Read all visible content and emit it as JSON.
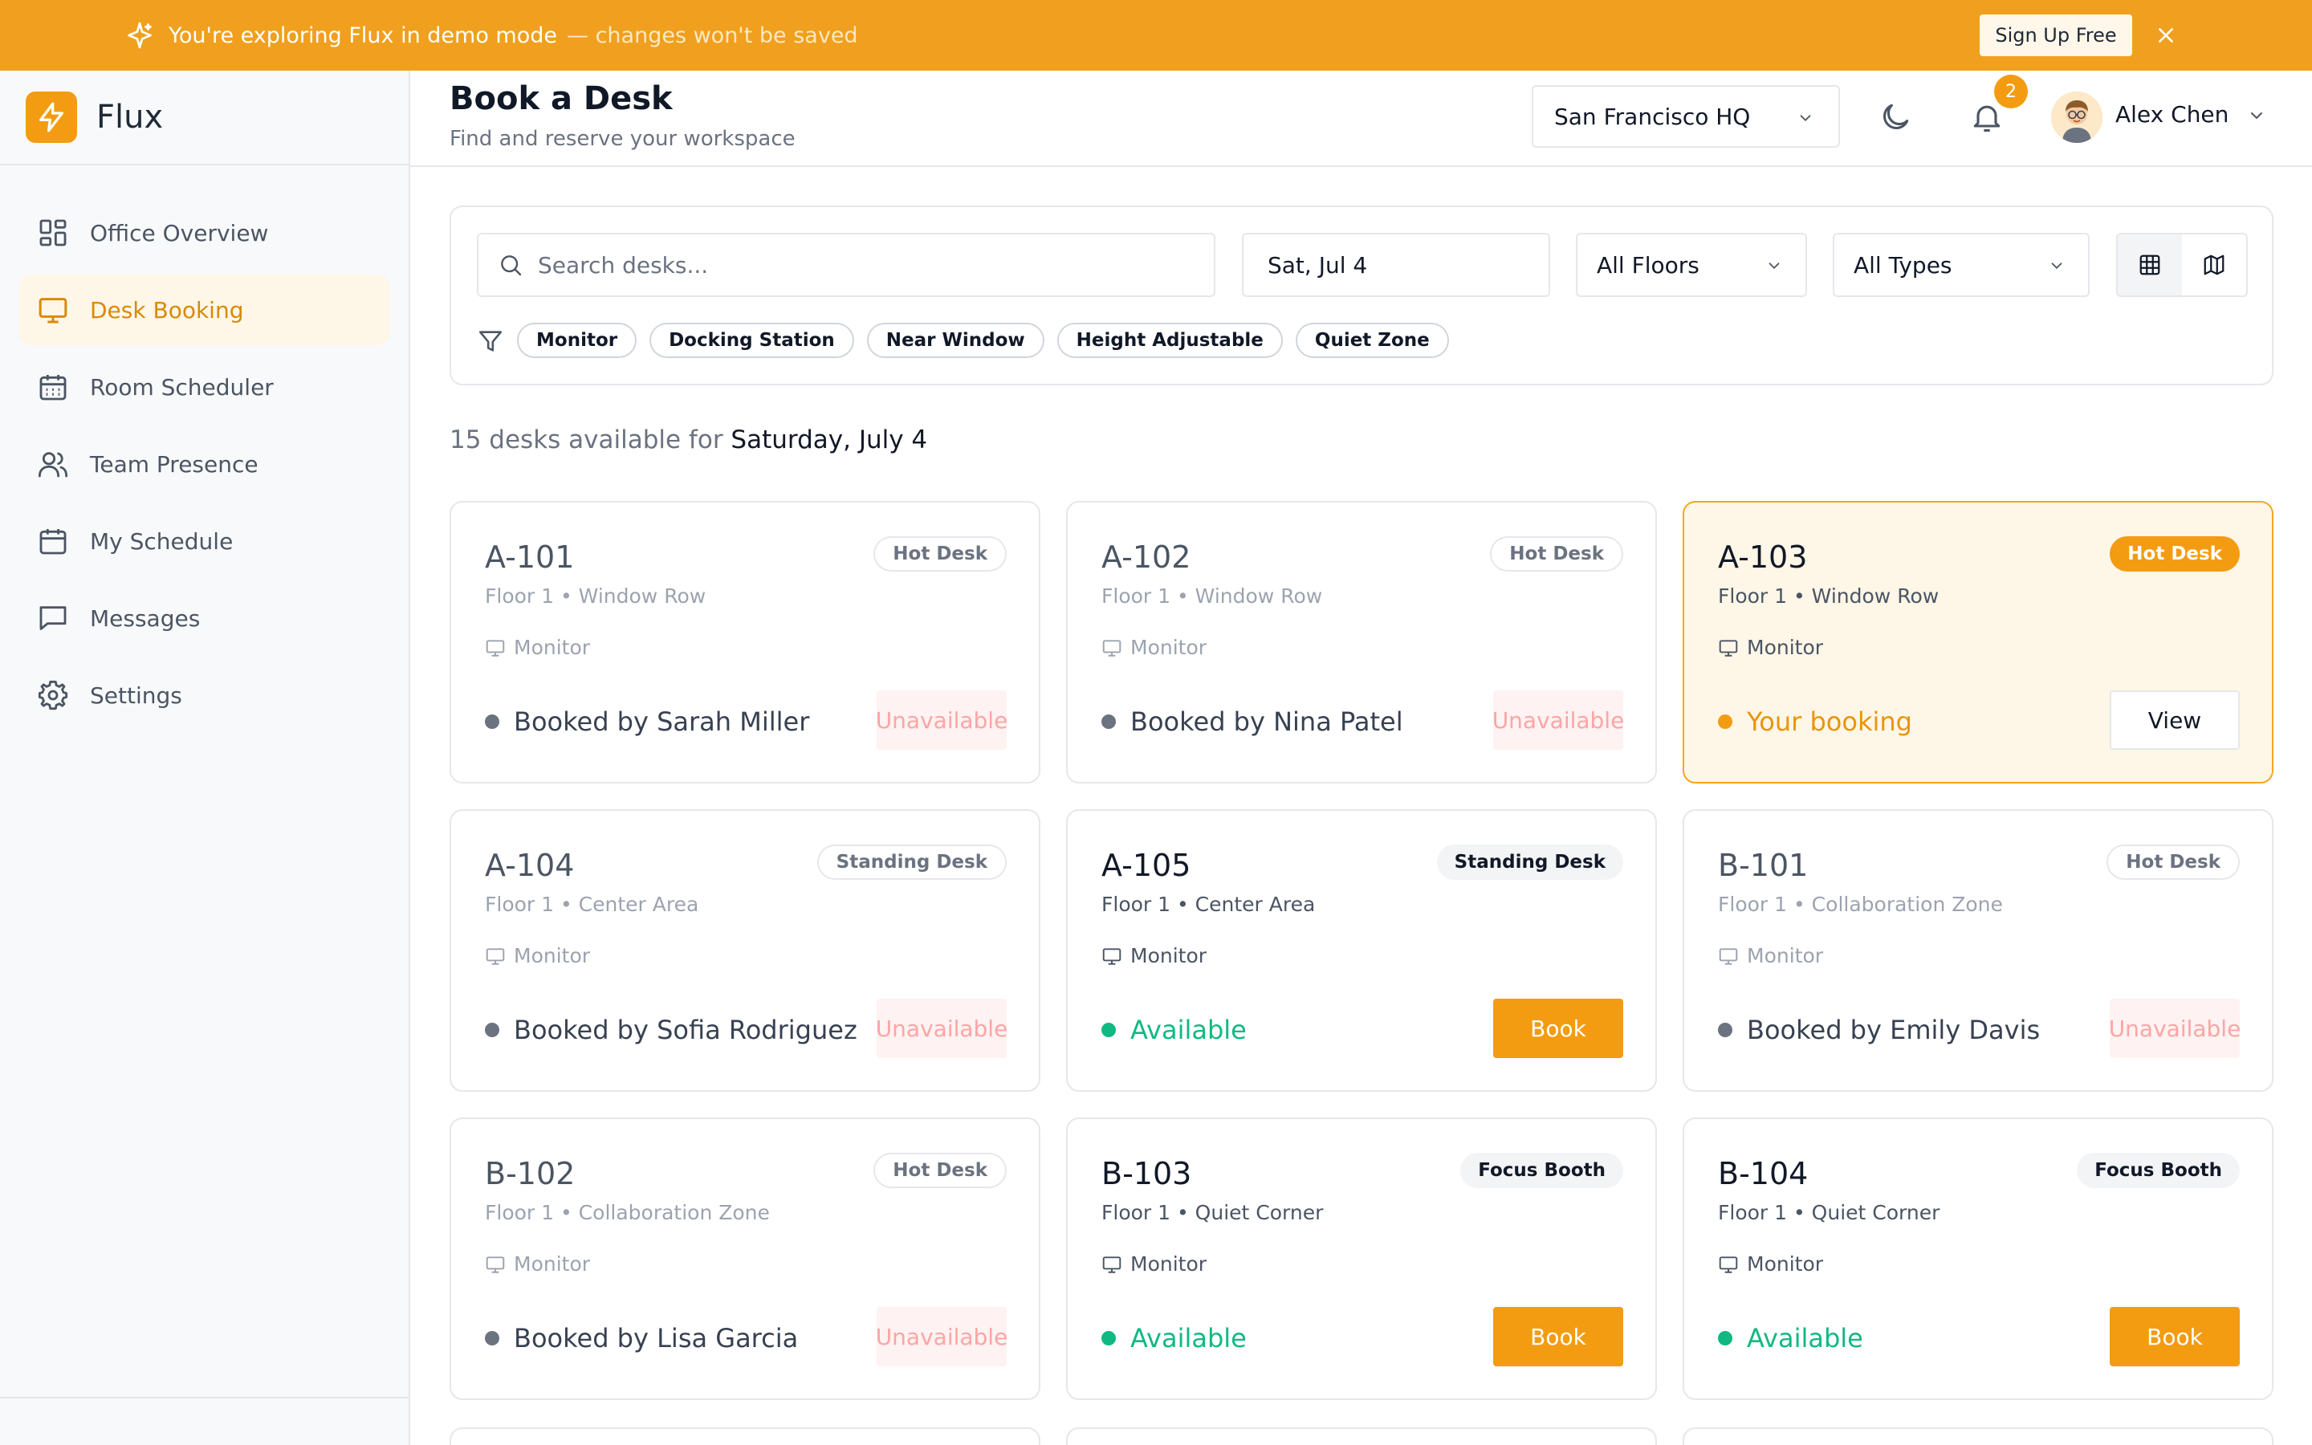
{
  "banner": {
    "message": "You're exploring Flux in demo mode",
    "sub_message": "— changes won't be saved",
    "signup_label": "Sign Up Free"
  },
  "brand": {
    "name": "Flux"
  },
  "sidebar": {
    "items": [
      {
        "label": "Office Overview",
        "icon": "grid-icon",
        "active": false
      },
      {
        "label": "Desk Booking",
        "icon": "monitor-icon",
        "active": true
      },
      {
        "label": "Room Scheduler",
        "icon": "calendar-grid-icon",
        "active": false
      },
      {
        "label": "Team Presence",
        "icon": "users-icon",
        "active": false
      },
      {
        "label": "My Schedule",
        "icon": "calendar-icon",
        "active": false
      },
      {
        "label": "Messages",
        "icon": "message-icon",
        "active": false
      },
      {
        "label": "Settings",
        "icon": "gear-icon",
        "active": false
      }
    ]
  },
  "header": {
    "title": "Book a Desk",
    "subtitle": "Find and reserve your workspace",
    "location": "San Francisco HQ",
    "notification_count": "2",
    "user_name": "Alex Chen"
  },
  "filters": {
    "search_placeholder": "Search desks...",
    "date": "Sat, Jul 4",
    "floor": "All Floors",
    "type": "All Types",
    "chips": [
      "Monitor",
      "Docking Station",
      "Near Window",
      "Height Adjustable",
      "Quiet Zone"
    ]
  },
  "summary": {
    "count_text": "15 desks available for",
    "date_text": "Saturday, July 4"
  },
  "desks": [
    {
      "code": "A-101",
      "type": "Hot Desk",
      "location": "Floor 1 • Window Row",
      "amenity": "Monitor",
      "status": "Booked by Sarah Miller",
      "state": "booked",
      "action": "Unavailable"
    },
    {
      "code": "A-102",
      "type": "Hot Desk",
      "location": "Floor 1 • Window Row",
      "amenity": "Monitor",
      "status": "Booked by Nina Patel",
      "state": "booked",
      "action": "Unavailable"
    },
    {
      "code": "A-103",
      "type": "Hot Desk",
      "location": "Floor 1 • Window Row",
      "amenity": "Monitor",
      "status": "Your booking",
      "state": "yours",
      "action": "View"
    },
    {
      "code": "A-104",
      "type": "Standing Desk",
      "location": "Floor 1 • Center Area",
      "amenity": "Monitor",
      "status": "Booked by Sofia Rodriguez",
      "state": "booked",
      "action": "Unavailable"
    },
    {
      "code": "A-105",
      "type": "Standing Desk",
      "location": "Floor 1 • Center Area",
      "amenity": "Monitor",
      "status": "Available",
      "state": "available",
      "action": "Book"
    },
    {
      "code": "B-101",
      "type": "Hot Desk",
      "location": "Floor 1 • Collaboration Zone",
      "amenity": "Monitor",
      "status": "Booked by Emily Davis",
      "state": "booked",
      "action": "Unavailable"
    },
    {
      "code": "B-102",
      "type": "Hot Desk",
      "location": "Floor 1 • Collaboration Zone",
      "amenity": "Monitor",
      "status": "Booked by Lisa Garcia",
      "state": "booked",
      "action": "Unavailable"
    },
    {
      "code": "B-103",
      "type": "Focus Booth",
      "location": "Floor 1 • Quiet Corner",
      "amenity": "Monitor",
      "status": "Available",
      "state": "available",
      "action": "Book"
    },
    {
      "code": "B-104",
      "type": "Focus Booth",
      "location": "Floor 1 • Quiet Corner",
      "amenity": "Monitor",
      "status": "Available",
      "state": "available",
      "action": "Book"
    }
  ],
  "colors": {
    "accent": "#f39c12",
    "banner": "#f0a01e",
    "available": "#10b981",
    "unavailable_text": "#fca5a5"
  }
}
